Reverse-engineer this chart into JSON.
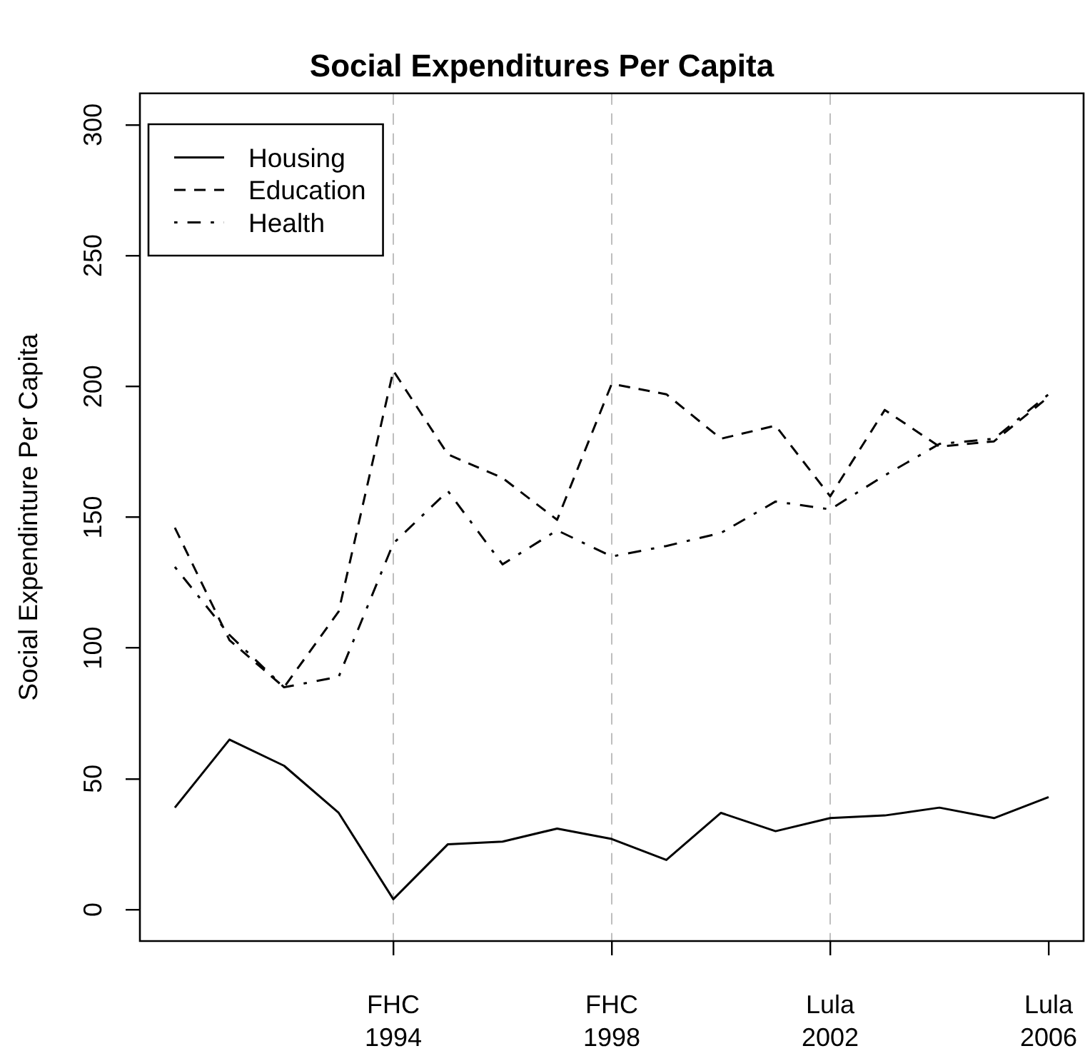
{
  "chart_data": {
    "type": "line",
    "title": "Social Expenditures Per Capita",
    "ylabel": "Social Expendinture Per Capita",
    "categories": [
      null,
      null,
      null,
      null,
      "FHC\n1994",
      null,
      null,
      null,
      "FHC\n1998",
      null,
      null,
      null,
      "Lula\n2002",
      null,
      null,
      null,
      "Lula\n2006"
    ],
    "series": [
      {
        "name": "Housing",
        "color": "#000000",
        "line_style": "solid",
        "values": [
          39,
          65,
          55,
          37,
          4,
          25,
          26,
          31,
          27,
          19,
          37,
          30,
          35,
          36,
          39,
          35,
          43
        ]
      },
      {
        "name": "Education",
        "color": "#000000",
        "line_style": "dashed",
        "values": [
          146,
          103,
          85,
          114,
          206,
          174,
          165,
          149,
          201,
          197,
          180,
          185,
          158,
          191,
          177,
          179,
          196
        ]
      },
      {
        "name": "Health",
        "color": "#000000",
        "line_style": "dashdot",
        "values": [
          131,
          105,
          85,
          89,
          140,
          160,
          132,
          145,
          135,
          139,
          144,
          156,
          153,
          166,
          178,
          180,
          197
        ]
      }
    ],
    "ylim": [
      -12,
      312
    ],
    "yticks": [
      0,
      50,
      100,
      150,
      200,
      250,
      300
    ],
    "ref_lines": [
      {
        "axis": "x",
        "value": "FHC\n1994",
        "color": "#bebebe",
        "line_style": "dashed"
      },
      {
        "axis": "x",
        "value": "FHC\n1998",
        "color": "#bebebe",
        "line_style": "dashed"
      },
      {
        "axis": "x",
        "value": "Lula\n2002",
        "color": "#bebebe",
        "line_style": "dashed"
      }
    ],
    "legend": "top left",
    "grid": false,
    "marker": "none"
  }
}
